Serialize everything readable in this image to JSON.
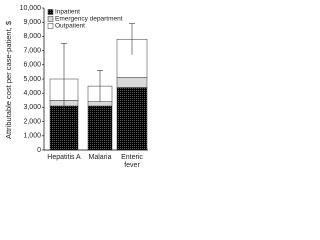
{
  "chart_data": {
    "type": "bar",
    "stacked": true,
    "y_label": "Attributable cost per case-patient, $",
    "categories": [
      "Hepatitis A",
      "Malaria",
      "Enteric fever"
    ],
    "series": [
      {
        "name": "Inpatient",
        "color": "#7f7f7f",
        "values": [
          3100,
          3100,
          4400
        ]
      },
      {
        "name": "Emergency department",
        "color": "#d9d9d9",
        "values": [
          400,
          300,
          700
        ]
      },
      {
        "name": "Outpatient",
        "color": "#ffffff",
        "values": [
          1500,
          1100,
          2700
        ]
      }
    ],
    "errors": [
      2500,
      1100,
      1100
    ],
    "ylim": [
      0,
      10000
    ],
    "yticks": [
      0,
      {
        "value": 1000,
        "label": "1,000"
      },
      {
        "value": 2000,
        "label": "2,000"
      },
      {
        "value": 3000,
        "label": "3,000"
      },
      {
        "value": 4000,
        "label": "4,000"
      },
      {
        "value": 5000,
        "label": "5,000"
      },
      {
        "value": 6000,
        "label": "6,000"
      },
      {
        "value": 7000,
        "label": "7,000"
      },
      {
        "value": 8000,
        "label": "8,000"
      },
      {
        "value": 9000,
        "label": "9,000"
      },
      {
        "value": 10000,
        "label": "10,000"
      }
    ],
    "legend": "upper left"
  }
}
